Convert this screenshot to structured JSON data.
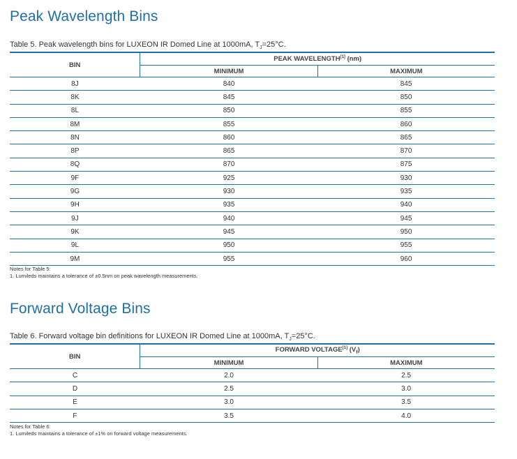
{
  "section1": {
    "heading": "Peak Wavelength Bins",
    "caption_before": "Table 5. Peak wavelength bins for LUXEON IR Domed Line at 1000mA, T",
    "caption_sub": "J",
    "caption_after": "=25°C.",
    "table": {
      "bin_header": "BIN",
      "group_header": "PEAK WAVELENGTH",
      "group_sup": "[1]",
      "group_unit": " (nm)",
      "min_header": "MINIMUM",
      "max_header": "MAXIMUM",
      "rows": [
        {
          "bin": "8J",
          "min": "840",
          "max": "845"
        },
        {
          "bin": "8K",
          "min": "845",
          "max": "850"
        },
        {
          "bin": "8L",
          "min": "850",
          "max": "855"
        },
        {
          "bin": "8M",
          "min": "855",
          "max": "860"
        },
        {
          "bin": "8N",
          "min": "860",
          "max": "865"
        },
        {
          "bin": "8P",
          "min": "865",
          "max": "870"
        },
        {
          "bin": "8Q",
          "min": "870",
          "max": "875"
        },
        {
          "bin": "9F",
          "min": "925",
          "max": "930"
        },
        {
          "bin": "9G",
          "min": "930",
          "max": "935"
        },
        {
          "bin": "9H",
          "min": "935",
          "max": "940"
        },
        {
          "bin": "9J",
          "min": "940",
          "max": "945"
        },
        {
          "bin": "9K",
          "min": "945",
          "max": "950"
        },
        {
          "bin": "9L",
          "min": "950",
          "max": "955"
        },
        {
          "bin": "9M",
          "min": "955",
          "max": "960"
        }
      ]
    },
    "notes_title": "Notes for Table 5:",
    "notes": [
      "1.   Lumileds maintains a tolerance of ±0.5nm on peak wavelength measurements."
    ]
  },
  "section2": {
    "heading": "Forward Voltage Bins",
    "caption_before": "Table 6. Forward voltage bin definitions for LUXEON IR Domed Line at 1000mA, T",
    "caption_sub": "J",
    "caption_after": "=25°C.",
    "table": {
      "bin_header": "BIN",
      "group_header": "FORWARD VOLTAGE",
      "group_sup": "[1]",
      "group_unit_before": " (V",
      "group_unit_sub": "f",
      "group_unit_after": ")",
      "min_header": "MINIMUM",
      "max_header": "MAXIMUM",
      "rows": [
        {
          "bin": "C",
          "min": "2.0",
          "max": "2.5"
        },
        {
          "bin": "D",
          "min": "2.5",
          "max": "3.0"
        },
        {
          "bin": "E",
          "min": "3.0",
          "max": "3.5"
        },
        {
          "bin": "F",
          "min": "3.5",
          "max": "4.0"
        }
      ]
    },
    "notes_title": "Notes for Table 6:",
    "notes": [
      "1.   Lumileds maintains a tolerance of ±1% on forward voltage measurements."
    ]
  }
}
